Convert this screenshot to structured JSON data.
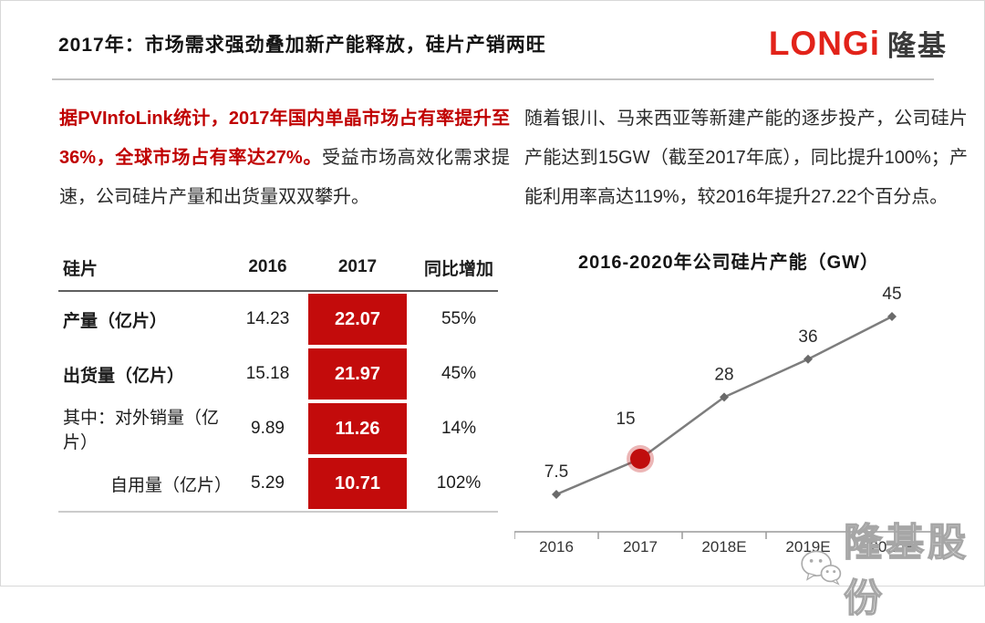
{
  "slide": {
    "title": "2017年：市场需求强劲叠加新产能释放，硅片产销两旺",
    "logo": {
      "latin": "LONGi",
      "cjk": "隆基"
    },
    "left_paragraph": {
      "highlight": "据PVInfoLink统计，2017年国内单晶市场占有率提升至36%，全球市场占有率达27%。",
      "rest": "受益市场高效化需求提速，公司硅片产量和出货量双双攀升。"
    },
    "right_paragraph": "随着银川、马来西亚等新建产能的逐步投产，公司硅片产能达到15GW（截至2017年底），同比提升100%；产能利用率高达119%，较2016年提升27.22个百分点。",
    "table": {
      "columns": [
        "硅片",
        "2016",
        "2017",
        "同比增加"
      ],
      "rows": [
        {
          "label": "产量（亿片）",
          "y2016": "14.23",
          "y2017": "22.07",
          "yoy": "55%"
        },
        {
          "label": "出货量（亿片）",
          "y2016": "15.18",
          "y2017": "21.97",
          "yoy": "45%"
        },
        {
          "label": "其中：对外销量（亿片）",
          "y2016": "9.89",
          "y2017": "11.26",
          "yoy": "14%"
        },
        {
          "label": "自用量（亿片）",
          "y2016": "5.29",
          "y2017": "10.71",
          "yoy": "102%"
        }
      ]
    },
    "watermark_text": "隆基股份",
    "colors": {
      "accent_red": "#c30b0b",
      "logo_red": "#e2231a",
      "line_gray": "#7d7d7d",
      "watermark_gray": "#a6a6a6"
    }
  },
  "chart_data": {
    "type": "line",
    "title": "2016-2020年公司硅片产能（GW）",
    "categories": [
      "2016",
      "2017",
      "2018E",
      "2019E",
      "2020E"
    ],
    "values": [
      7.5,
      15,
      28,
      36,
      45
    ],
    "labels": [
      "7.5",
      "15",
      "28",
      "36",
      "45"
    ],
    "highlight_index": 1,
    "highlight_color": "#c00d0d",
    "line_color": "#7d7d7d",
    "xlabel": "",
    "ylabel": "",
    "ylim": [
      0,
      50
    ],
    "grid": false,
    "legend": false
  }
}
